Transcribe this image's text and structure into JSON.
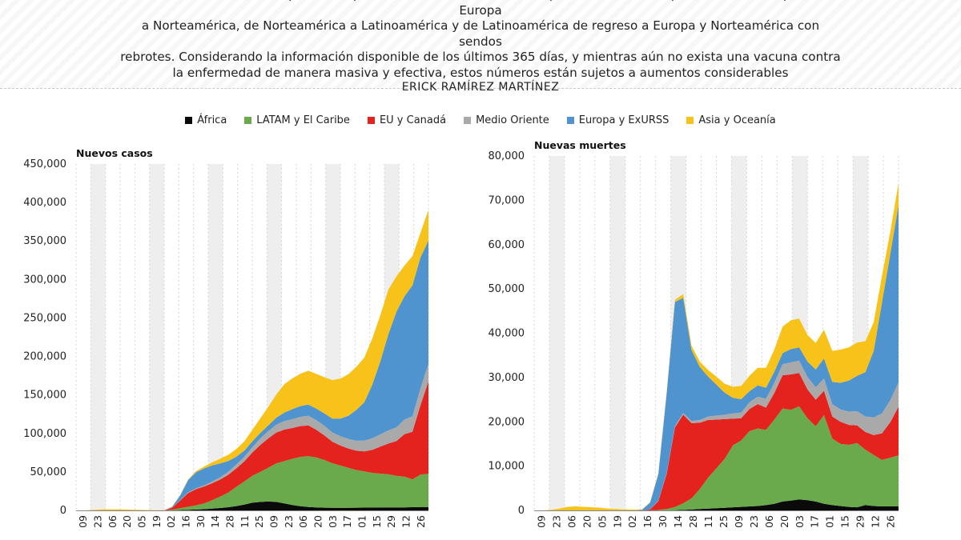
{
  "intro_lines": [
    "fallecidos. Durante este periodo la pandemia ha ido cambiado de epicentro con el tiempo: De Asia a Europa, de Europa",
    "a Norteamérica, de Norteamérica a Latinoamérica y de Latinoamérica de regreso a Europa y Norteamérica con sendos",
    "rebrotes. Considerando la información disponible de los últimos 365 días, y mientras aún no exista una vacuna contra",
    "la enfermedad de manera masiva y efectiva, estos números están sujetos a aumentos considerables"
  ],
  "author": "ERICK RAMÍREZ MARTÍNEZ",
  "legend": [
    {
      "label": "África",
      "color": "#0a0a0a"
    },
    {
      "label": "LATAM y El Caribe",
      "color": "#6aaa4c"
    },
    {
      "label": "EU y Canadá",
      "color": "#e4231f"
    },
    {
      "label": "Medio Oriente",
      "color": "#a9a9a9"
    },
    {
      "label": "Europa y ExURSS",
      "color": "#4f93cf"
    },
    {
      "label": "Asia y Oceanía",
      "color": "#f7c21a"
    }
  ],
  "chart_data": [
    {
      "type": "area",
      "stacked": true,
      "ylabel": "Nuevos casos",
      "ylim": [
        0,
        450000
      ],
      "yticks": [
        0,
        50000,
        100000,
        150000,
        200000,
        250000,
        300000,
        350000,
        400000,
        450000
      ],
      "ytick_labels": [
        "0",
        "50,000",
        "100,000",
        "150,000",
        "200,000",
        "250,000",
        "300,000",
        "350,000",
        "400,000",
        "450,000"
      ],
      "x_tick_labels": [
        "09",
        "23",
        "06",
        "20",
        "05",
        "19",
        "02",
        "16",
        "30",
        "14",
        "28",
        "11",
        "25",
        "09",
        "23",
        "06",
        "20",
        "03",
        "17",
        "01",
        "15",
        "29",
        "12",
        "26"
      ],
      "grid_bands": true,
      "series": [
        {
          "name": "África",
          "values": [
            0,
            0,
            0,
            0,
            0,
            0,
            0,
            0,
            0,
            0,
            0,
            0,
            200,
            400,
            700,
            1100,
            1600,
            2300,
            3100,
            4200,
            5600,
            7500,
            10000,
            11000,
            11500,
            11000,
            9000,
            7000,
            5500,
            4500,
            3800,
            3500,
            3300,
            3300,
            3400,
            3500,
            3600,
            3700,
            3800,
            3900,
            4000,
            4000,
            4200,
            4500,
            4500
          ]
        },
        {
          "name": "LATAM y El Caribe",
          "values": [
            0,
            0,
            0,
            0,
            0,
            0,
            0,
            0,
            0,
            0,
            0,
            0,
            800,
            2500,
            4000,
            5500,
            7500,
            11000,
            15000,
            19000,
            25000,
            30000,
            35000,
            39000,
            44000,
            50000,
            55000,
            60000,
            64000,
            66000,
            65000,
            62000,
            58000,
            55000,
            52000,
            49000,
            47000,
            45000,
            44000,
            43000,
            41000,
            40000,
            36000,
            42000,
            43000
          ]
        },
        {
          "name": "EU y Canadá",
          "values": [
            0,
            0,
            0,
            0,
            0,
            0,
            0,
            0,
            0,
            0,
            0,
            0,
            2500,
            10000,
            18000,
            21000,
            22000,
            22000,
            22000,
            23000,
            24000,
            26000,
            30000,
            35000,
            38000,
            40000,
            41000,
            40000,
            40000,
            40000,
            36000,
            32000,
            28000,
            26000,
            25000,
            25000,
            26000,
            30000,
            35000,
            40000,
            45000,
            55000,
            62000,
            90000,
            120000
          ]
        },
        {
          "name": "Medio Oriente",
          "values": [
            0,
            0,
            0,
            0,
            0,
            0,
            0,
            0,
            0,
            0,
            0,
            0,
            200,
            500,
            800,
            1100,
            1500,
            2200,
            3000,
            4000,
            5000,
            6000,
            7000,
            8500,
            9500,
            10500,
            11000,
            11500,
            12000,
            12500,
            12500,
            12500,
            12000,
            12000,
            12500,
            13000,
            14000,
            15000,
            16000,
            17000,
            18000,
            19000,
            20000,
            22000,
            23000
          ]
        },
        {
          "name": "Europa y ExURSS",
          "values": [
            0,
            0,
            0,
            0,
            0,
            0,
            0,
            0,
            0,
            0,
            0,
            0,
            1000,
            6000,
            16000,
            21000,
            22000,
            21000,
            18000,
            14000,
            10000,
            8000,
            7500,
            7000,
            7500,
            9000,
            11000,
            13000,
            14000,
            14500,
            15000,
            16000,
            18000,
            23000,
            30000,
            40000,
            50000,
            70000,
            95000,
            125000,
            150000,
            160000,
            170000,
            170000,
            160000
          ]
        },
        {
          "name": "Asia y Oceanía",
          "values": [
            0,
            0,
            500,
            1200,
            1500,
            1500,
            1200,
            900,
            600,
            400,
            300,
            300,
            400,
            500,
            800,
            1500,
            2500,
            4000,
            6000,
            8000,
            10000,
            12000,
            15000,
            19000,
            24000,
            30000,
            37000,
            40000,
            42000,
            44000,
            45000,
            47000,
            50000,
            52000,
            54000,
            56000,
            58000,
            60000,
            60000,
            58000,
            46000,
            40000,
            38000,
            32000,
            40000
          ]
        }
      ]
    },
    {
      "type": "area",
      "stacked": true,
      "ylabel": "Nuevas muertes",
      "ylim": [
        0,
        80000
      ],
      "yticks": [
        0,
        10000,
        20000,
        30000,
        40000,
        50000,
        60000,
        70000,
        80000
      ],
      "ytick_labels": [
        "0",
        "10,000",
        "20,000",
        "30,000",
        "40,000",
        "50,000",
        "60,000",
        "70,000",
        "80,000"
      ],
      "x_tick_labels": [
        "09",
        "23",
        "06",
        "20",
        "05",
        "19",
        "02",
        "16",
        "30",
        "14",
        "28",
        "11",
        "25",
        "09",
        "23",
        "06",
        "20",
        "03",
        "17",
        "01",
        "15",
        "29",
        "12",
        "26"
      ],
      "grid_bands": true,
      "series": [
        {
          "name": "África",
          "values": [
            0,
            0,
            0,
            0,
            0,
            0,
            0,
            0,
            0,
            0,
            0,
            0,
            0,
            0,
            0,
            0,
            0,
            50,
            100,
            200,
            300,
            400,
            500,
            600,
            700,
            800,
            900,
            1000,
            1200,
            1500,
            2000,
            2200,
            2500,
            2300,
            2000,
            1500,
            1200,
            1000,
            800,
            700,
            1200,
            1000,
            900,
            900,
            900
          ]
        },
        {
          "name": "LATAM y El Caribe",
          "values": [
            0,
            0,
            0,
            0,
            0,
            0,
            0,
            0,
            0,
            0,
            0,
            0,
            0,
            0,
            0,
            100,
            300,
            700,
            1500,
            2500,
            4500,
            7000,
            9000,
            11000,
            14000,
            15000,
            17000,
            17500,
            17000,
            19000,
            21000,
            20500,
            21000,
            18500,
            17000,
            20000,
            15000,
            14000,
            14000,
            14500,
            12500,
            11500,
            10500,
            11000,
            11500
          ]
        },
        {
          "name": "EU y Canadá",
          "values": [
            0,
            0,
            0,
            0,
            0,
            0,
            0,
            0,
            0,
            0,
            0,
            0,
            0,
            0,
            200,
            2000,
            8000,
            18000,
            20000,
            17000,
            15000,
            13000,
            11000,
            9000,
            6000,
            5000,
            5000,
            5500,
            5000,
            6000,
            7500,
            8000,
            7500,
            6500,
            6000,
            5500,
            5000,
            5000,
            4500,
            4000,
            4000,
            4500,
            6000,
            8000,
            11000
          ]
        },
        {
          "name": "Medio Oriente",
          "values": [
            0,
            0,
            0,
            0,
            0,
            0,
            0,
            0,
            0,
            0,
            0,
            0,
            0,
            0,
            50,
            100,
            200,
            300,
            400,
            500,
            600,
            800,
            900,
            1000,
            1200,
            1300,
            1500,
            1700,
            2000,
            2300,
            2500,
            2700,
            2800,
            2800,
            2800,
            2800,
            2800,
            2800,
            3000,
            3200,
            3500,
            4000,
            4500,
            5000,
            5500
          ]
        },
        {
          "name": "Europa y ExURSS",
          "values": [
            0,
            0,
            0,
            0,
            0,
            0,
            0,
            0,
            0,
            0,
            0,
            0,
            0,
            100,
            1500,
            6000,
            18000,
            28000,
            26000,
            16000,
            12000,
            9000,
            7000,
            5000,
            3500,
            3000,
            2500,
            2500,
            2500,
            2500,
            2500,
            3000,
            3000,
            3500,
            4000,
            4500,
            5000,
            6000,
            7000,
            8000,
            10000,
            15000,
            25000,
            33000,
            40000
          ]
        },
        {
          "name": "Asia y Oceanía",
          "values": [
            0,
            0,
            100,
            400,
            800,
            900,
            800,
            700,
            600,
            400,
            300,
            200,
            200,
            100,
            100,
            200,
            300,
            500,
            800,
            1000,
            1200,
            1500,
            1800,
            2000,
            2500,
            3000,
            3500,
            4000,
            4500,
            5000,
            6000,
            6500,
            6500,
            6000,
            6000,
            6500,
            7000,
            7500,
            7500,
            7500,
            7000,
            6500,
            6000,
            5000,
            5000
          ]
        }
      ]
    }
  ]
}
